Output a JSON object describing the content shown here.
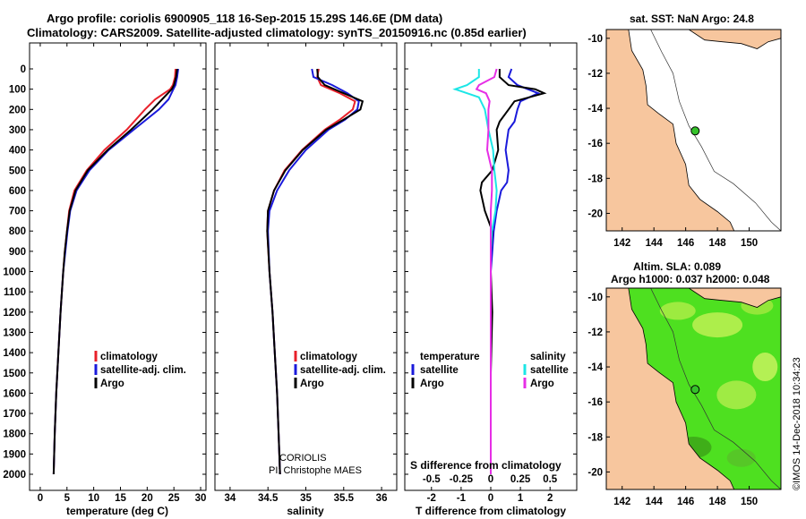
{
  "header": {
    "title_line1": "Argo profile: coriolis 6900905_118 16-Sep-2015 15.29S 146.6E (DM data)",
    "title_line2": "Climatology: CARS2009. Satellite-adjusted climatology: synTS_20150916.nc (0.85d earlier)"
  },
  "colors": {
    "climatology": "#e8202a",
    "satellite": "#1a1adb",
    "argo": "#000000",
    "sal_satellite": "#1ce6e6",
    "sal_argo": "#e62ee6",
    "land": "#f7c69e",
    "sla_green": "#4ee020",
    "float_marker": "#35c22a"
  },
  "legend": {
    "climatology": "climatology",
    "satellite_adj": "satellite-adj. clim.",
    "argo": "Argo",
    "temperature": "temperature",
    "salinity": "salinity",
    "satellite": "satellite"
  },
  "footer": {
    "coriolis": "CORIOLIS",
    "pi": "PI: Christophe MAES",
    "s_diff_label": "S difference from climatology",
    "imos_stamp": "©IMOS 14-Dec-2018 10:34:23"
  },
  "chart_data": [
    {
      "type": "line",
      "name": "temperature",
      "xlabel": "temperature (deg C)",
      "ylabel": "",
      "xlim": [
        -2,
        31
      ],
      "ylim": [
        2080,
        0
      ],
      "xticks": [
        0,
        5,
        10,
        15,
        20,
        25,
        30
      ],
      "yticks": [
        0,
        100,
        200,
        300,
        400,
        500,
        600,
        700,
        800,
        900,
        1000,
        1100,
        1200,
        1300,
        1400,
        1500,
        1600,
        1700,
        1800,
        1900,
        2000
      ],
      "grid": false,
      "legend_position": "lower-right",
      "series": [
        {
          "name": "climatology",
          "depth": [
            0,
            40,
            80,
            100,
            150,
            200,
            300,
            400,
            500,
            600,
            700,
            800,
            900,
            1000,
            1200,
            1400,
            1600,
            1800,
            2000
          ],
          "values": [
            25.3,
            25.2,
            24.8,
            24.3,
            21.5,
            19.6,
            16.2,
            12.0,
            8.7,
            6.4,
            5.4,
            5.0,
            4.6,
            4.3,
            3.8,
            3.4,
            3.0,
            2.7,
            2.5
          ]
        },
        {
          "name": "satellite-adj. clim.",
          "depth": [
            0,
            40,
            80,
            100,
            150,
            200,
            300,
            400,
            500,
            600,
            700,
            800,
            900,
            1000,
            1200,
            1400,
            1600,
            1800,
            2000
          ],
          "values": [
            25.8,
            25.6,
            25.3,
            24.9,
            24.0,
            22.2,
            17.5,
            12.8,
            9.2,
            6.8,
            5.6,
            5.1,
            4.7,
            4.3,
            3.8,
            3.4,
            3.0,
            2.7,
            2.5
          ]
        },
        {
          "name": "Argo",
          "depth": [
            0,
            40,
            80,
            100,
            150,
            200,
            300,
            400,
            500,
            600,
            700,
            800,
            900,
            1000,
            1200,
            1400,
            1600,
            1800,
            2000
          ],
          "values": [
            25.6,
            25.4,
            25.0,
            24.6,
            22.8,
            21.0,
            17.0,
            12.6,
            8.9,
            6.6,
            5.5,
            5.0,
            4.6,
            4.3,
            3.8,
            3.4,
            3.0,
            2.7,
            2.5
          ]
        }
      ]
    },
    {
      "type": "line",
      "name": "salinity",
      "xlabel": "salinity",
      "ylabel": "",
      "xlim": [
        33.8,
        36.2
      ],
      "ylim": [
        2080,
        0
      ],
      "xticks": [
        34,
        34.5,
        35,
        35.5,
        36
      ],
      "grid": false,
      "legend_position": "lower-right",
      "series": [
        {
          "name": "climatology",
          "depth": [
            0,
            40,
            80,
            120,
            160,
            200,
            250,
            300,
            400,
            500,
            600,
            700,
            800,
            1000,
            1200,
            1400,
            1600,
            1800,
            2000
          ],
          "values": [
            35.17,
            35.15,
            35.2,
            35.45,
            35.65,
            35.62,
            35.45,
            35.25,
            34.95,
            34.72,
            34.58,
            34.5,
            34.49,
            34.52,
            34.56,
            34.59,
            34.62,
            34.64,
            34.66
          ]
        },
        {
          "name": "satellite-adj. clim.",
          "depth": [
            0,
            40,
            80,
            120,
            160,
            200,
            250,
            300,
            400,
            500,
            600,
            700,
            800,
            1000,
            1200,
            1400,
            1600,
            1800,
            2000
          ],
          "values": [
            35.08,
            35.1,
            35.35,
            35.55,
            35.7,
            35.68,
            35.52,
            35.3,
            35.0,
            34.78,
            34.62,
            34.52,
            34.5,
            34.52,
            34.56,
            34.59,
            34.62,
            34.64,
            34.66
          ]
        },
        {
          "name": "Argo",
          "depth": [
            0,
            40,
            80,
            120,
            160,
            200,
            250,
            300,
            400,
            500,
            600,
            700,
            800,
            1000,
            1200,
            1400,
            1600,
            1800,
            2000
          ],
          "values": [
            35.15,
            35.16,
            35.25,
            35.5,
            35.75,
            35.72,
            35.5,
            35.27,
            34.96,
            34.73,
            34.58,
            34.5,
            34.49,
            34.52,
            34.56,
            34.59,
            34.62,
            34.64,
            34.66
          ]
        }
      ]
    },
    {
      "type": "line",
      "name": "difference",
      "xlabel": "T difference from climatology",
      "x2label": "S difference from climatology",
      "xlim": [
        -2.9,
        2.9
      ],
      "ylim": [
        2080,
        0
      ],
      "xticks": [
        -2,
        -1,
        0,
        1,
        2
      ],
      "x2ticks": [
        -0.5,
        -0.25,
        0,
        0.25,
        0.5
      ],
      "x2tick_labels": [
        "-0.5",
        "-0.25",
        "0",
        "0.25",
        "0.5"
      ],
      "grid": false,
      "legend_position": "lower",
      "series": [
        {
          "name": "temperature satellite",
          "depth": [
            0,
            40,
            80,
            120,
            160,
            200,
            260,
            300,
            400,
            500,
            560,
            600,
            700,
            800,
            900,
            1000,
            1200,
            1500,
            1800,
            2000
          ],
          "values": [
            0.7,
            0.6,
            0.9,
            1.6,
            1.0,
            0.9,
            0.8,
            0.6,
            0.5,
            0.6,
            0.55,
            0.35,
            0.2,
            0.1,
            0.05,
            0.0,
            0.0,
            0.0,
            0.0,
            0.0
          ]
        },
        {
          "name": "temperature Argo",
          "depth": [
            0,
            40,
            80,
            100,
            120,
            160,
            200,
            260,
            300,
            400,
            500,
            560,
            600,
            700,
            800,
            900,
            1000,
            1200,
            1500,
            1800,
            2000
          ],
          "values": [
            0.3,
            0.3,
            0.6,
            1.5,
            1.8,
            0.8,
            0.6,
            0.3,
            0.2,
            0.25,
            0.05,
            -0.3,
            -0.35,
            -0.2,
            0.05,
            0.0,
            0.0,
            0.05,
            0.0,
            0.0,
            0.0
          ]
        },
        {
          "name": "salinity satellite",
          "depth": [
            0,
            40,
            80,
            100,
            140,
            200,
            300,
            400,
            500,
            600,
            700,
            800,
            900,
            1000,
            1200,
            1500,
            1800,
            2000
          ],
          "values": [
            -0.1,
            -0.1,
            -0.2,
            -0.3,
            -0.1,
            -0.05,
            -0.02,
            0.02,
            0.03,
            0.05,
            0.04,
            0.01,
            0.0,
            0.0,
            0.0,
            0.0,
            0.0,
            0.0
          ]
        },
        {
          "name": "salinity Argo",
          "depth": [
            0,
            40,
            80,
            100,
            120,
            160,
            200,
            300,
            400,
            500,
            600,
            700,
            800,
            900,
            1000,
            1200,
            1500,
            1800,
            2000
          ],
          "values": [
            0.05,
            0.03,
            -0.1,
            -0.12,
            -0.04,
            -0.01,
            -0.02,
            -0.02,
            -0.03,
            0.01,
            0.01,
            0.0,
            0.0,
            0.0,
            0.0,
            0.0,
            0.0,
            0.0,
            0.0
          ]
        }
      ]
    },
    {
      "type": "map",
      "name": "sst map",
      "title": "sat. SST: NaN Argo: 24.8",
      "xlim": [
        141,
        152
      ],
      "ylim": [
        -21,
        -9.5
      ],
      "xticks": [
        142,
        144,
        146,
        148,
        150
      ],
      "yticks": [
        -10,
        -12,
        -14,
        -16,
        -18,
        -20
      ],
      "float_position": {
        "lon": 146.6,
        "lat": -15.29
      }
    },
    {
      "type": "map",
      "name": "sla map",
      "title_line1": "Altim. SLA: 0.089",
      "title_line2": "Argo h1000: 0.037 h2000: 0.048",
      "xlim": [
        141,
        152
      ],
      "ylim": [
        -21,
        -9.5
      ],
      "xticks": [
        142,
        144,
        146,
        148,
        150
      ],
      "yticks": [
        -10,
        -12,
        -14,
        -16,
        -18,
        -20
      ],
      "float_position": {
        "lon": 146.6,
        "lat": -15.29
      }
    }
  ]
}
